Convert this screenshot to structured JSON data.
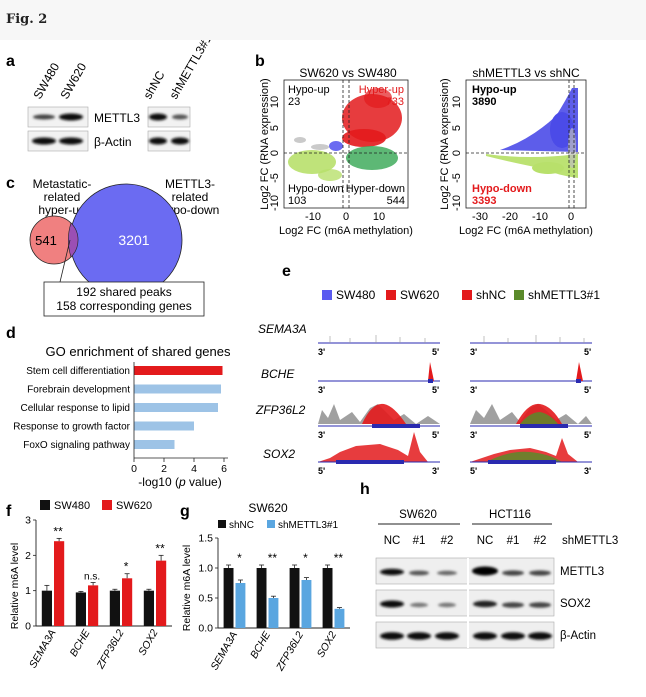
{
  "figure": {
    "title": "Fig. 2",
    "panel_letters": [
      "a",
      "b",
      "c",
      "d",
      "e",
      "f",
      "g",
      "h"
    ],
    "panel_a": {
      "lanes_left": [
        "SW480",
        "SW620"
      ],
      "lanes_right": [
        "shNC",
        "shMETTL3#1"
      ],
      "proteins": [
        "METTL3",
        "β-Actin"
      ]
    },
    "panel_b": {
      "x_label": "Log2 FC (m6A methylation)",
      "y_label": "Log2 FC (RNA expression)",
      "left": {
        "title": "SW620 vs SW480",
        "hypo_up": "Hypo-up",
        "hypo_up_n": "23",
        "hyper_up": "Hyper-up",
        "hyper_up_n": "733",
        "hypo_down": "Hypo-down",
        "hypo_down_n": "103",
        "hyper_down": "Hyper-down",
        "hyper_down_n": "544",
        "x_ticks": [
          "-10",
          "0",
          "10"
        ],
        "y_ticks": [
          "10",
          "5",
          "0",
          "-5",
          "-10"
        ]
      },
      "right": {
        "title": "shMETTL3 vs shNC",
        "hypo_up": "Hypo-up",
        "hypo_up_n": "3890",
        "hypo_down": "Hypo-down",
        "hypo_down_n": "3393",
        "x_ticks": [
          "-30",
          "-20",
          "-10",
          "0"
        ],
        "y_ticks": [
          "10",
          "5",
          "0",
          "-5",
          "-10"
        ]
      }
    },
    "panel_c": {
      "label_left": [
        "Metastatic-",
        "related",
        "hyper-up"
      ],
      "label_right": [
        "METTL3-",
        "related",
        "hypo-down"
      ],
      "left_only": "541",
      "right_only": "3201",
      "shared_line1": "192 shared peaks",
      "shared_line2": "158 corresponding genes"
    },
    "panel_d": {
      "title": "GO enrichment of shared genes",
      "x_label_pre": "-log10 (",
      "x_label_it": "p",
      "x_label_post": " value)",
      "x_ticks": [
        "0",
        "2",
        "4",
        "6"
      ]
    },
    "panel_e": {
      "legend_left": [
        "SW480",
        "SW620"
      ],
      "legend_right": [
        "shNC",
        "shMETTL3#1"
      ],
      "genes": [
        "SEMA3A",
        "BCHE",
        "ZFP36L2",
        "SOX2"
      ],
      "ends": [
        [
          "3'",
          "5'"
        ],
        [
          "3'",
          "5'"
        ],
        [
          "3'",
          "5'"
        ],
        [
          "5'",
          "3'"
        ]
      ]
    },
    "panel_h": {
      "cell_lines": [
        "SW620",
        "HCT116"
      ],
      "lanes": [
        "NC",
        "#1",
        "#2",
        "NC",
        "#1",
        "#2"
      ],
      "sh_label": "shMETTL3",
      "proteins": [
        "METTL3",
        "SOX2",
        "β-Actin"
      ]
    }
  },
  "chart_data": [
    {
      "type": "bar",
      "panel": "d",
      "title": "GO enrichment of shared genes",
      "orientation": "horizontal",
      "categories": [
        "Stem cell differentiation",
        "Forebrain development",
        "Cellular response to lipid",
        "Response to growth factor",
        "FoxO signaling pathway"
      ],
      "values": [
        5.9,
        5.8,
        5.6,
        4.0,
        2.7
      ],
      "colors": [
        "#e31a1c",
        "#9dc3e6",
        "#9dc3e6",
        "#9dc3e6",
        "#9dc3e6"
      ],
      "xlabel": "-log10 (p value)",
      "xlim": [
        0,
        6
      ]
    },
    {
      "type": "bar",
      "panel": "f",
      "categories": [
        "SEMA3A",
        "BCHE",
        "ZFP36L2",
        "SOX2"
      ],
      "series": [
        {
          "name": "SW480",
          "values": [
            1.0,
            0.95,
            1.0,
            1.0
          ],
          "errors": [
            0.15,
            0.03,
            0.04,
            0.04
          ],
          "color": "#111111"
        },
        {
          "name": "SW620",
          "values": [
            2.4,
            1.15,
            1.35,
            1.85
          ],
          "errors": [
            0.08,
            0.08,
            0.13,
            0.15
          ],
          "color": "#e31a1c"
        }
      ],
      "significance": [
        "**",
        "n.s.",
        "*",
        "**"
      ],
      "ylabel": "Relative m6A level",
      "ylim": [
        0,
        3
      ],
      "yticks": [
        "0",
        "1",
        "2",
        "3"
      ]
    },
    {
      "type": "bar",
      "panel": "g",
      "title": "SW620",
      "categories": [
        "SEMA3A",
        "BCHE",
        "ZFP36L2",
        "SOX2"
      ],
      "series": [
        {
          "name": "shNC",
          "values": [
            1.0,
            1.0,
            1.0,
            1.0
          ],
          "errors": [
            0.05,
            0.05,
            0.05,
            0.05
          ],
          "color": "#111111"
        },
        {
          "name": "shMETTL3#1",
          "values": [
            0.75,
            0.5,
            0.8,
            0.32
          ],
          "errors": [
            0.05,
            0.03,
            0.04,
            0.02
          ],
          "color": "#5aa6e0"
        }
      ],
      "significance": [
        "*",
        "**",
        "*",
        "**"
      ],
      "ylabel": "Relative m6A level",
      "ylim": [
        0,
        1.5
      ],
      "yticks": [
        "0.0",
        "0.5",
        "1.0",
        "1.5"
      ]
    }
  ]
}
